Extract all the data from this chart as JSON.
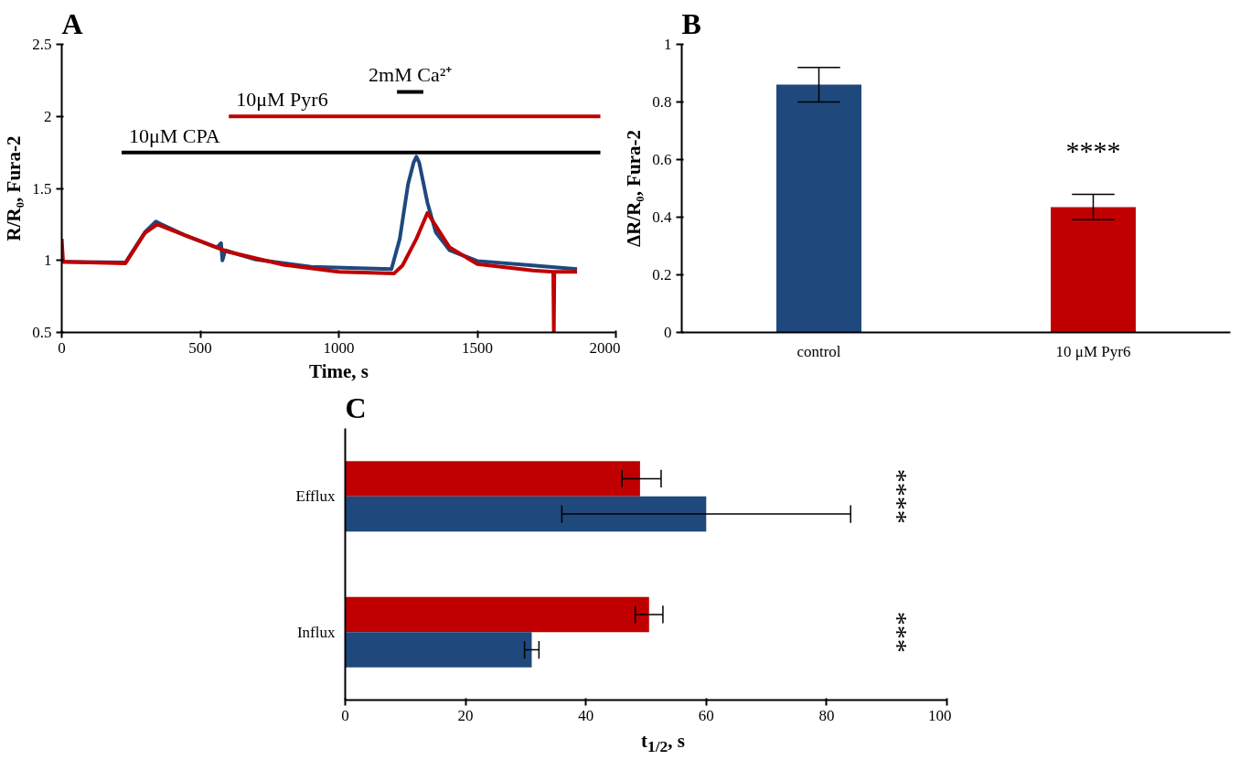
{
  "chart_data": [
    {
      "type": "line",
      "title": "A",
      "xlabel": "Time, s",
      "ylabel": "R/R₀, Fura-2",
      "xlim": [
        0,
        2000
      ],
      "ylim": [
        0.5,
        2.5
      ],
      "xticks": [
        0,
        500,
        1000,
        1500,
        2000
      ],
      "yticks": [
        0.5,
        1,
        1.5,
        2,
        2.5
      ],
      "series": [
        {
          "color": "#1f497d",
          "x": [
            0,
            230,
            300,
            340,
            360,
            450,
            560,
            575,
            580,
            590,
            700,
            900,
            1190,
            1220,
            1250,
            1270,
            1280,
            1290,
            1320,
            1350,
            1400,
            1500,
            1700,
            1860
          ],
          "values": [
            0.99,
            0.985,
            1.195,
            1.27,
            1.25,
            1.17,
            1.09,
            1.12,
            1.0,
            1.07,
            1.006,
            0.955,
            0.94,
            1.15,
            1.53,
            1.68,
            1.72,
            1.68,
            1.4,
            1.195,
            1.07,
            0.996,
            0.965,
            0.94
          ]
        },
        {
          "color": "#c00000",
          "x": [
            0,
            5,
            230,
            300,
            345,
            450,
            600,
            800,
            1000,
            1200,
            1230,
            1280,
            1320,
            1350,
            1400,
            1500,
            1700,
            1774,
            1776,
            1778,
            1860
          ],
          "values": [
            1.15,
            0.99,
            0.98,
            1.19,
            1.25,
            1.17,
            1.06,
            0.97,
            0.92,
            0.91,
            0.965,
            1.15,
            1.33,
            1.24,
            1.09,
            0.975,
            0.93,
            0.92,
            0.5,
            0.92,
            0.92
          ]
        },
        {
          "color": "#000000",
          "x": [
            216,
            1944
          ],
          "values": [
            1.75,
            1.75
          ]
        },
        {
          "color": "#c00000",
          "x": [
            603,
            1944
          ],
          "values": [
            2.0,
            2.0
          ]
        },
        {
          "color": "#000000",
          "x": [
            1210,
            1305
          ],
          "values": [
            2.17,
            2.17
          ]
        }
      ],
      "annotations": [
        {
          "text": "10μM CPA",
          "x": 216,
          "y": 1.75
        },
        {
          "text": "10μM Pyr6",
          "x": 603,
          "y": 2.0
        },
        {
          "text": "2mM Ca²⁺",
          "x": 1258,
          "y": 2.17
        }
      ]
    },
    {
      "type": "bar",
      "title": "B",
      "ylabel": "ΔR/R₀, Fura-2",
      "categories": [
        "control",
        "10 μM Pyr6"
      ],
      "values": [
        0.86,
        0.435
      ],
      "colors": [
        "#1f497d",
        "#c00000"
      ],
      "errors": [
        0.06,
        0.044
      ],
      "ylim": [
        0,
        1
      ],
      "yticks": [
        0,
        0.2,
        0.4,
        0.6,
        0.8,
        1
      ],
      "annotations": [
        "****"
      ]
    },
    {
      "type": "bar",
      "orientation": "horizontal",
      "title": "C",
      "xlabel": "t$_{1/2}$, s",
      "categories": [
        "Efflux",
        "Influx"
      ],
      "xlim": [
        0,
        100
      ],
      "xticks": [
        0,
        20,
        40,
        60,
        80,
        100
      ],
      "series": [
        {
          "color": "#c00000",
          "values": [
            49,
            50.5
          ],
          "errors": [
            [
              46,
              52.5
            ],
            [
              48.2,
              52.8
            ]
          ]
        },
        {
          "color": "#1f497d",
          "values": [
            60,
            31
          ],
          "errors": [
            [
              36,
              84
            ],
            [
              29.8,
              32.2
            ]
          ]
        }
      ],
      "annotations": [
        "****",
        "***"
      ]
    }
  ]
}
